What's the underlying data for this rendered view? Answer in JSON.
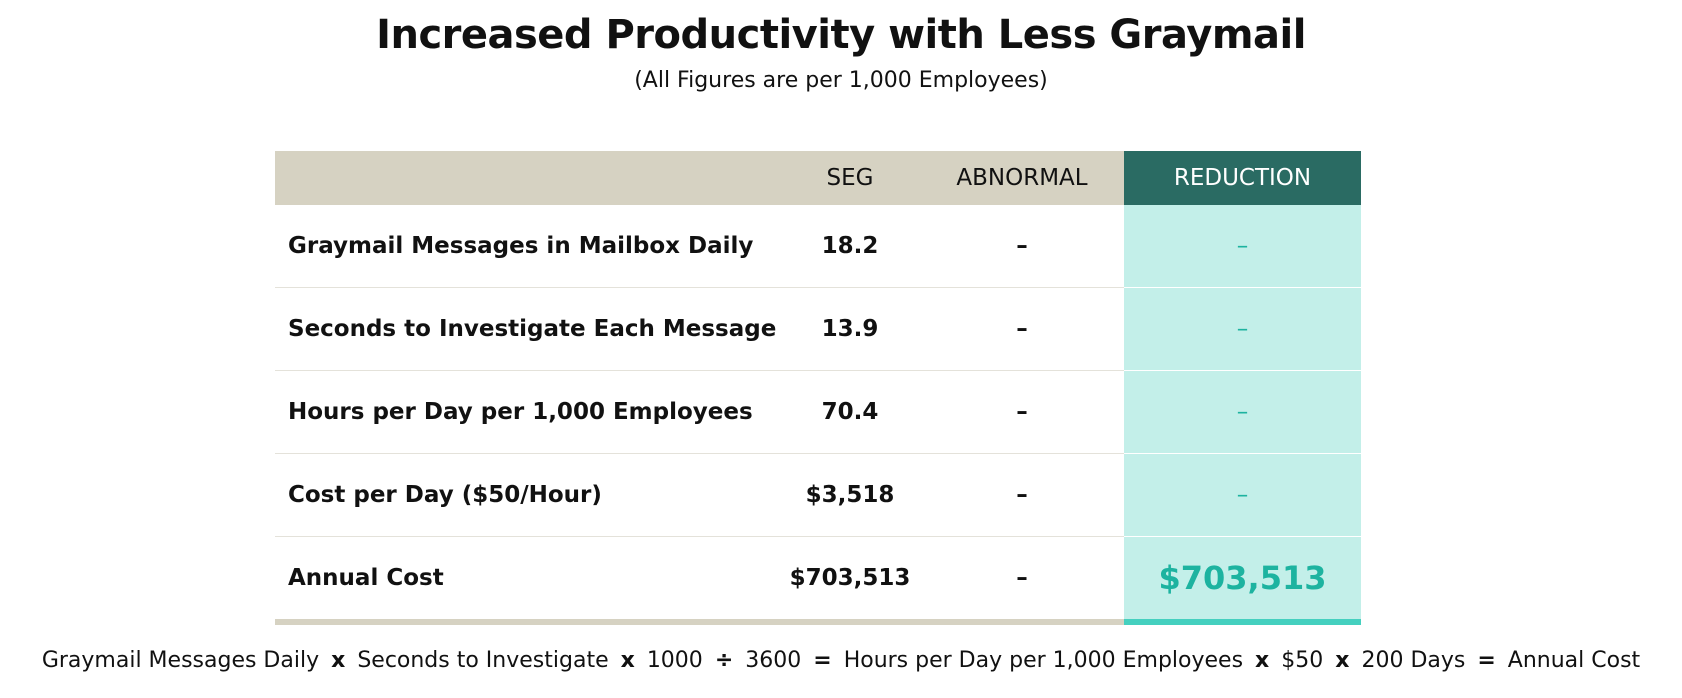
{
  "header": {
    "title": "Increased Productivity with Less Graymail",
    "subtitle": "(All Figures are per 1,000 Employees)"
  },
  "table": {
    "columns": [
      "",
      "SEG",
      "ABNORMAL",
      "REDUCTION"
    ],
    "rows": [
      [
        "Graymail Messages in Mailbox Daily",
        "18.2",
        "–",
        "–"
      ],
      [
        "Seconds to Investigate Each Message",
        "13.9",
        "–",
        "–"
      ],
      [
        "Hours per Day per 1,000 Employees",
        "70.4",
        "–",
        "–"
      ],
      [
        "Cost per Day ($50/Hour)",
        "$3,518",
        "–",
        "–"
      ],
      [
        "Annual Cost",
        "$703,513",
        "–",
        "$703,513"
      ]
    ]
  },
  "formula": {
    "terms": [
      "Graymail Messages Daily",
      "Seconds to Investigate",
      "1000",
      "3600",
      "Hours per Day per 1,000 Employees",
      "$50",
      "200 Days",
      "Annual Cost"
    ],
    "operators": [
      "x",
      "x",
      "÷",
      "=",
      "x",
      "x",
      "="
    ]
  }
}
